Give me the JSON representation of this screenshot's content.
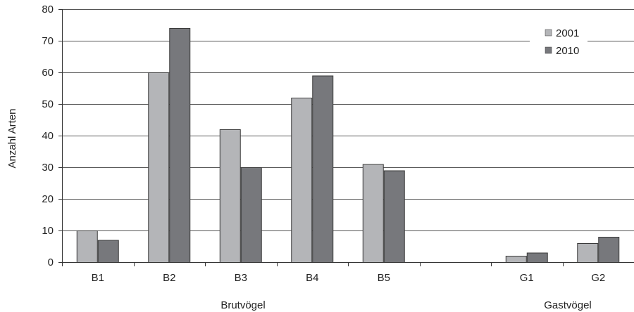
{
  "chart_data": {
    "type": "bar",
    "categories": [
      "B1",
      "B2",
      "B3",
      "B4",
      "B5",
      "",
      "G1",
      "G2"
    ],
    "series": [
      {
        "name": "2001",
        "values": [
          10,
          60,
          42,
          52,
          31,
          null,
          2,
          6
        ],
        "color": "#b4b5b8"
      },
      {
        "name": "2010",
        "values": [
          7,
          74,
          30,
          59,
          29,
          null,
          3,
          8
        ],
        "color": "#77787c"
      }
    ],
    "group_labels": [
      "Brutvögel",
      "Gastvögel"
    ],
    "ylabel": "Anzahl Arten",
    "xlabel": "",
    "ylim": [
      0,
      80
    ],
    "yticks": [
      0,
      10,
      20,
      30,
      40,
      50,
      60,
      70,
      80
    ],
    "grid": true,
    "legend_position": "top-right"
  }
}
